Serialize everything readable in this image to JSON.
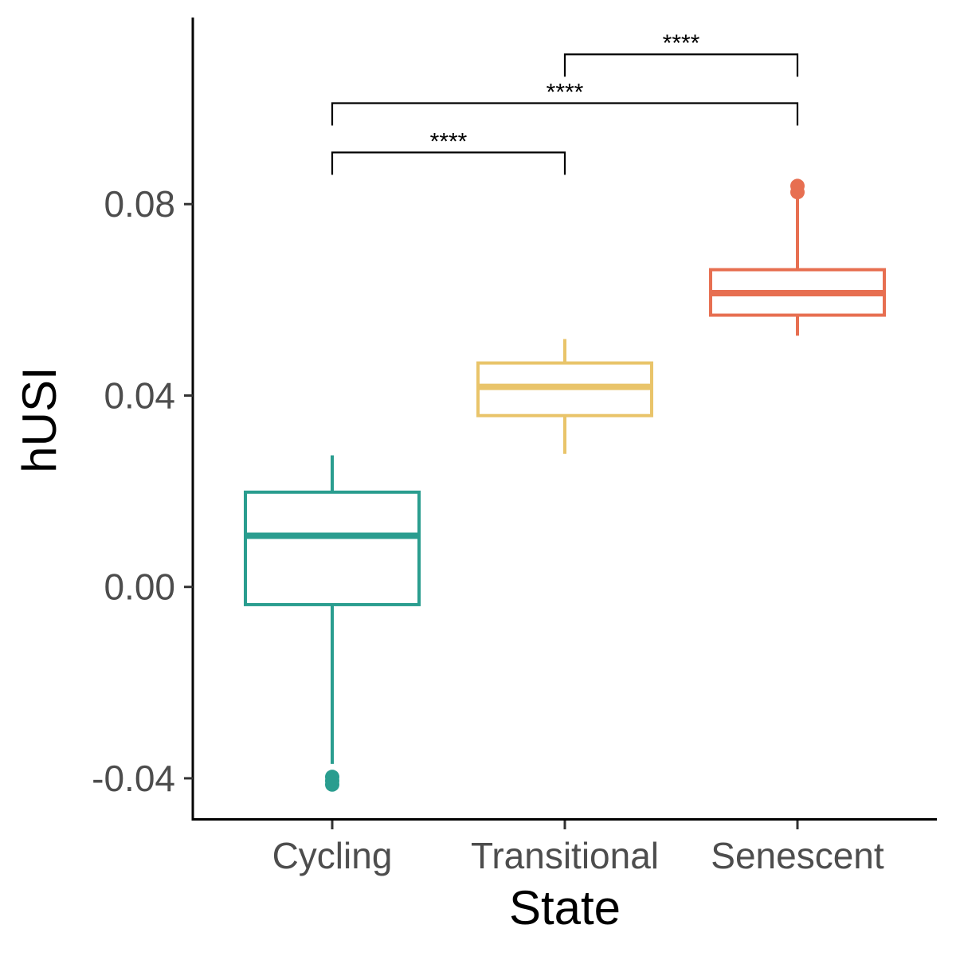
{
  "chart_data": {
    "type": "box",
    "xlabel": "State",
    "ylabel": "hUSI",
    "ylim": [
      -0.0485,
      0.119
    ],
    "y_ticks": [
      {
        "value": -0.04,
        "label": "-0.04"
      },
      {
        "value": 0.0,
        "label": "0.00"
      },
      {
        "value": 0.04,
        "label": "0.04"
      },
      {
        "value": 0.08,
        "label": "0.08"
      }
    ],
    "categories": [
      "Cycling",
      "Transitional",
      "Senescent"
    ],
    "boxes": [
      {
        "category": "Cycling",
        "color": "#2a9d8f",
        "whisker_low": -0.037,
        "q1": -0.0037,
        "median": 0.0107,
        "q3": 0.0198,
        "whisker_high": 0.0275,
        "outliers": [
          -0.0397,
          -0.0405,
          -0.0413
        ]
      },
      {
        "category": "Transitional",
        "color": "#e9c46a",
        "whisker_low": 0.0278,
        "q1": 0.0358,
        "median": 0.0418,
        "q3": 0.0468,
        "whisker_high": 0.0518,
        "outliers": []
      },
      {
        "category": "Senescent",
        "color": "#e76f51",
        "whisker_low": 0.0525,
        "q1": 0.0568,
        "median": 0.0614,
        "q3": 0.0663,
        "whisker_high": 0.0818,
        "outliers": [
          0.0825,
          0.0838
        ]
      }
    ],
    "comparisons": [
      {
        "from": "Cycling",
        "to": "Transitional",
        "y": 0.0908,
        "label": "****"
      },
      {
        "from": "Cycling",
        "to": "Senescent",
        "y": 0.1011,
        "label": "****"
      },
      {
        "from": "Transitional",
        "to": "Senescent",
        "y": 0.1113,
        "label": "****"
      }
    ],
    "grid": false,
    "legend": "none"
  }
}
